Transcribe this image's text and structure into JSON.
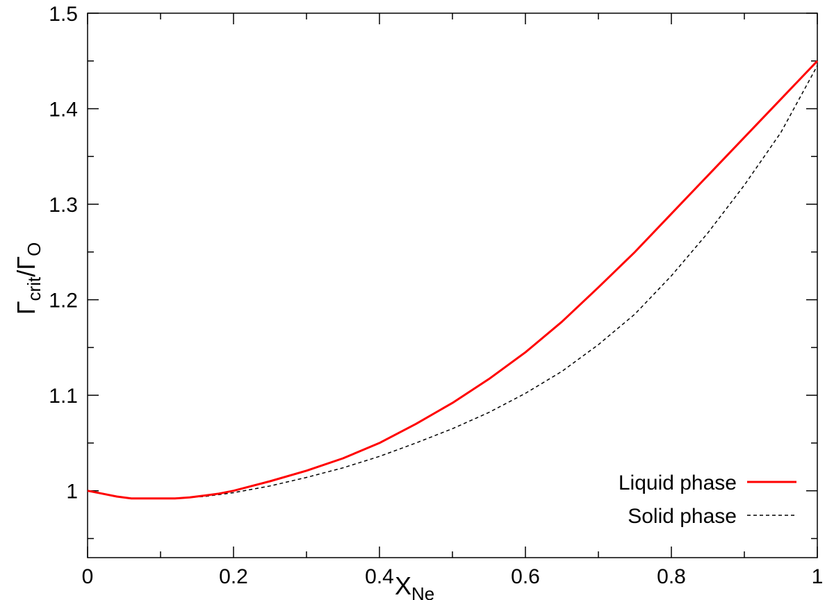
{
  "chart_data": {
    "type": "line",
    "title": "",
    "xlabel": {
      "main": "X",
      "sub": "Ne"
    },
    "ylabel": {
      "main_1": "Γ",
      "sub_1": "crit",
      "sep": "/",
      "main_2": "Γ",
      "sub_2": "O"
    },
    "xlim": [
      0,
      1
    ],
    "ylim": [
      0.93,
      1.5
    ],
    "x_ticks": [
      0,
      0.2,
      0.4,
      0.6,
      0.8,
      1
    ],
    "x_tick_labels": [
      "0",
      "0.2",
      "0.4",
      "0.6",
      "0.8",
      "1"
    ],
    "y_ticks": [
      1,
      1.1,
      1.2,
      1.3,
      1.4,
      1.5
    ],
    "y_tick_labels": [
      "1",
      "1.1",
      "1.2",
      "1.3",
      "1.4",
      "1.5"
    ],
    "grid": false,
    "legend_position": "bottom-right",
    "series": [
      {
        "name": "Liquid phase",
        "color": "#ff0000",
        "style": "solid",
        "x": [
          0,
          0.02,
          0.04,
          0.06,
          0.08,
          0.1,
          0.12,
          0.14,
          0.16,
          0.18,
          0.2,
          0.25,
          0.3,
          0.35,
          0.4,
          0.45,
          0.5,
          0.55,
          0.6,
          0.65,
          0.7,
          0.75,
          0.8,
          0.85,
          0.9,
          0.95,
          1.0
        ],
        "y": [
          1.0,
          0.997,
          0.994,
          0.992,
          0.992,
          0.992,
          0.992,
          0.993,
          0.995,
          0.997,
          1.0,
          1.01,
          1.021,
          1.034,
          1.05,
          1.07,
          1.092,
          1.117,
          1.145,
          1.177,
          1.213,
          1.25,
          1.29,
          1.33,
          1.37,
          1.41,
          1.45
        ]
      },
      {
        "name": "Solid phase",
        "color": "#000000",
        "style": "dashed",
        "x": [
          0,
          0.02,
          0.04,
          0.06,
          0.08,
          0.1,
          0.12,
          0.14,
          0.16,
          0.18,
          0.2,
          0.25,
          0.3,
          0.35,
          0.4,
          0.45,
          0.5,
          0.55,
          0.6,
          0.65,
          0.7,
          0.75,
          0.8,
          0.85,
          0.9,
          0.95,
          1.0
        ],
        "y": [
          1.0,
          0.997,
          0.994,
          0.992,
          0.992,
          0.992,
          0.992,
          0.993,
          0.994,
          0.996,
          0.998,
          1.005,
          1.014,
          1.024,
          1.036,
          1.05,
          1.065,
          1.082,
          1.102,
          1.125,
          1.153,
          1.185,
          1.225,
          1.27,
          1.32,
          1.375,
          1.445
        ]
      }
    ]
  }
}
